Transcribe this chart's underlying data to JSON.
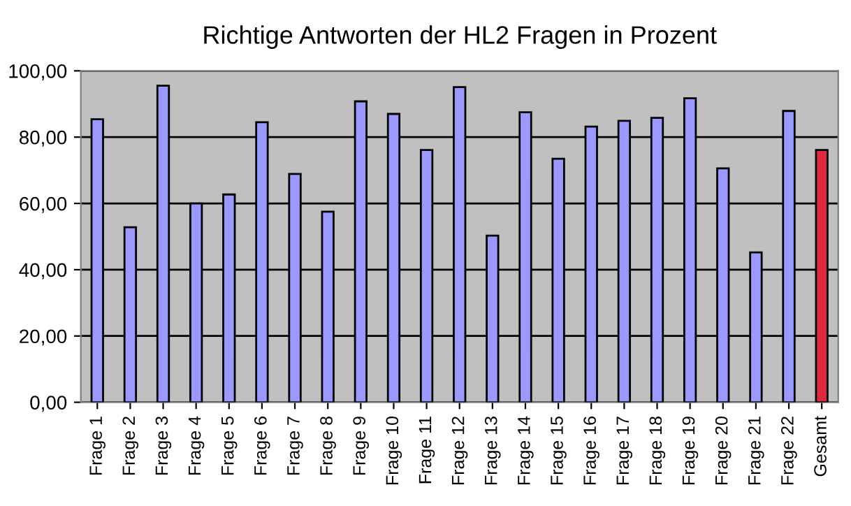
{
  "chart_data": {
    "type": "bar",
    "title": "Richtige Antworten der HL2 Fragen in Prozent",
    "categories": [
      "Frage 1",
      "Frage 2",
      "Frage 3",
      "Frage 4",
      "Frage 5",
      "Frage 6",
      "Frage 7",
      "Frage 8",
      "Frage 9",
      "Frage 10",
      "Frage 11",
      "Frage 12",
      "Frage 13",
      "Frage 14",
      "Frage 15",
      "Frage 16",
      "Frage 17",
      "Frage 18",
      "Frage 19",
      "Frage 20",
      "Frage 21",
      "Frage 22",
      "Gesamt"
    ],
    "values": [
      85.4,
      52.8,
      95.5,
      60,
      62.7,
      84.5,
      68.9,
      57.5,
      90.8,
      87.0,
      76.1,
      95.1,
      50.3,
      87.5,
      73.5,
      83.2,
      84.9,
      85.8,
      91.7,
      70.6,
      45.2,
      87.9,
      76.1
    ],
    "colors": [
      "#9999ff",
      "#9999ff",
      "#9999ff",
      "#9999ff",
      "#9999ff",
      "#9999ff",
      "#9999ff",
      "#9999ff",
      "#9999ff",
      "#9999ff",
      "#9999ff",
      "#9999ff",
      "#9999ff",
      "#9999ff",
      "#9999ff",
      "#9999ff",
      "#9999ff",
      "#9999ff",
      "#9999ff",
      "#9999ff",
      "#9999ff",
      "#9999ff",
      "#e0283f"
    ],
    "ylim": [
      0,
      100
    ],
    "yticks": [
      {
        "value": 0,
        "label": "0,00"
      },
      {
        "value": 20,
        "label": "20,00"
      },
      {
        "value": 40,
        "label": "40,00"
      },
      {
        "value": 60,
        "label": "60,00"
      },
      {
        "value": 80,
        "label": "80,00"
      },
      {
        "value": 100,
        "label": "100,00"
      }
    ],
    "grid": "y",
    "legend": false
  }
}
